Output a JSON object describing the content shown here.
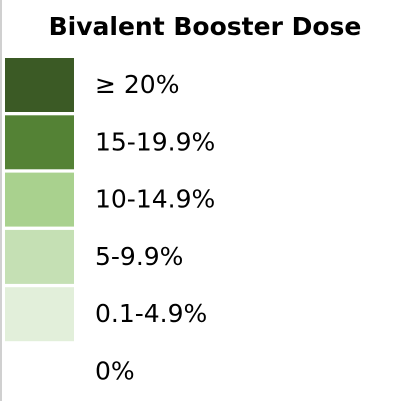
{
  "legend": {
    "title": "Bivalent Booster Dose",
    "items": [
      {
        "label": "≥ 20%",
        "color": "#3b5a25"
      },
      {
        "label": "15-19.9%",
        "color": "#548235"
      },
      {
        "label": "10-14.9%",
        "color": "#a9d18e"
      },
      {
        "label": "5-9.9%",
        "color": "#c5e0b4"
      },
      {
        "label": "0.1-4.9%",
        "color": "#e2efda"
      },
      {
        "label": "0%",
        "color": "#ffffff"
      }
    ]
  }
}
